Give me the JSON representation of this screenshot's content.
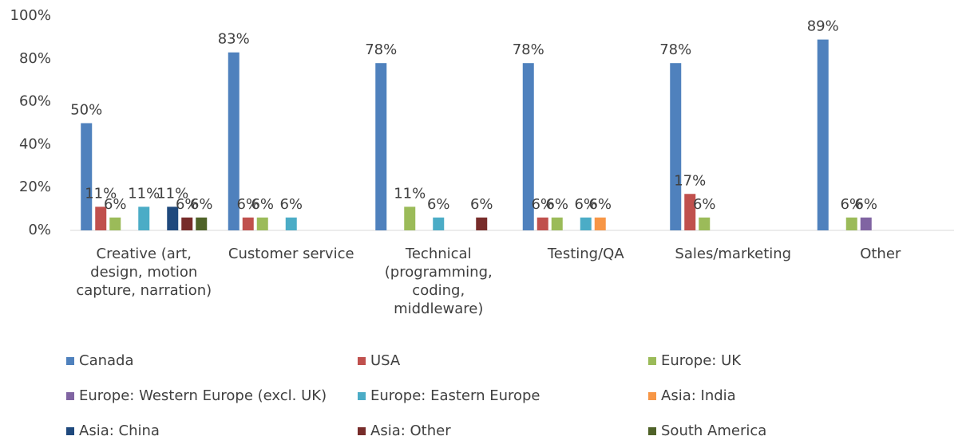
{
  "chart_data": {
    "type": "bar",
    "categories": [
      "Creative (art, design, motion capture, narration)",
      "Customer service",
      "Technical (programming, coding, middleware)",
      "Testing/QA",
      "Sales/marketing",
      "Other"
    ],
    "series": [
      {
        "name": "Canada",
        "color": "#4f81bd",
        "values": [
          50,
          83,
          78,
          78,
          78,
          89
        ],
        "value_labels": [
          "50%",
          "83%",
          "78%",
          "78%",
          "78%",
          "89%"
        ]
      },
      {
        "name": "USA",
        "color": "#c0504d",
        "values": [
          11,
          6,
          null,
          6,
          17,
          null
        ],
        "value_labels": [
          "11%",
          "6%",
          null,
          "6%",
          "17%",
          null
        ]
      },
      {
        "name": "Europe: UK",
        "color": "#9bbb59",
        "values": [
          6,
          6,
          11,
          6,
          6,
          6
        ],
        "value_labels": [
          "6%",
          "6%",
          "11%",
          "6%",
          "6%",
          "6%"
        ]
      },
      {
        "name": "Europe: Western Europe (excl. UK)",
        "color": "#8064a2",
        "values": [
          null,
          null,
          null,
          null,
          null,
          6
        ],
        "value_labels": [
          null,
          null,
          null,
          null,
          null,
          "6%"
        ]
      },
      {
        "name": "Europe: Eastern Europe",
        "color": "#4bacc6",
        "values": [
          11,
          6,
          6,
          6,
          null,
          null
        ],
        "value_labels": [
          "11%",
          "6%",
          "6%",
          "6%",
          null,
          null
        ]
      },
      {
        "name": "Asia: India",
        "color": "#f79646",
        "values": [
          null,
          null,
          null,
          6,
          null,
          null
        ],
        "value_labels": [
          null,
          null,
          null,
          "6%",
          null,
          null
        ]
      },
      {
        "name": "Asia: China",
        "color": "#1f497d",
        "values": [
          11,
          null,
          null,
          null,
          null,
          null
        ],
        "value_labels": [
          "11%",
          null,
          null,
          null,
          null,
          null
        ]
      },
      {
        "name": "Asia: Other",
        "color": "#772c2a",
        "values": [
          6,
          null,
          6,
          null,
          null,
          null
        ],
        "value_labels": [
          "6%",
          null,
          "6%",
          null,
          null,
          null
        ]
      },
      {
        "name": "South America",
        "color": "#4f6228",
        "values": [
          6,
          null,
          null,
          null,
          null,
          null
        ],
        "value_labels": [
          "6%",
          null,
          null,
          null,
          null,
          null
        ]
      }
    ],
    "ylim": [
      0,
      100
    ],
    "yticks": [
      {
        "value": 0,
        "label": "0%"
      },
      {
        "value": 20,
        "label": "20%"
      },
      {
        "value": 40,
        "label": "40%"
      },
      {
        "value": 60,
        "label": "60%"
      },
      {
        "value": 80,
        "label": "80%"
      },
      {
        "value": 100,
        "label": "100%"
      }
    ],
    "grid": false,
    "legend": "bottom"
  }
}
